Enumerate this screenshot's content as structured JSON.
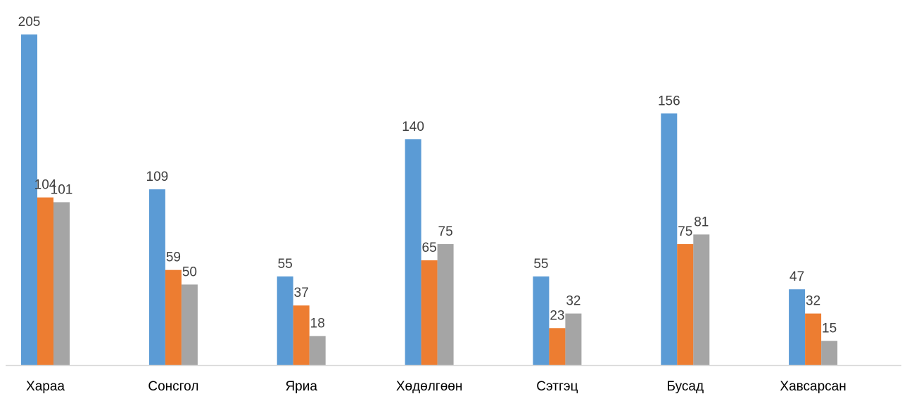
{
  "chart_data": {
    "type": "bar",
    "categories": [
      "Хараа",
      "Сонсгол",
      "Яриа",
      "Хөдөлгөөн",
      "Сэтгэц",
      "Бусад",
      "Хавсарсан"
    ],
    "series": [
      {
        "values": [
          205,
          109,
          55,
          140,
          55,
          156,
          47
        ],
        "color": "#5b9bd5"
      },
      {
        "values": [
          104,
          59,
          37,
          65,
          23,
          75,
          32
        ],
        "color": "#ed7d31"
      },
      {
        "values": [
          101,
          50,
          18,
          75,
          32,
          81,
          15
        ],
        "color": "#a5a5a5"
      }
    ],
    "ylim": [
      0,
      205
    ],
    "grid": false,
    "data_labels": true,
    "axis_color": "#d9d9d9"
  }
}
